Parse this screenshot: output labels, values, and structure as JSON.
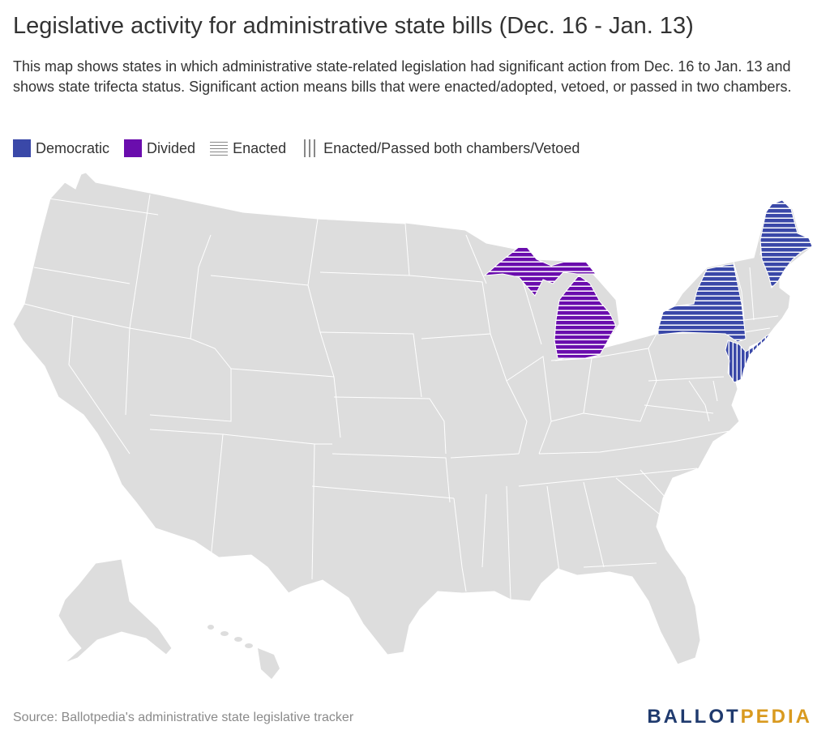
{
  "header": {
    "title": "Legislative activity for administrative state bills (Dec. 16 - Jan. 13)",
    "subtitle": "This map shows states in which administrative state-related legislation had significant action from Dec. 16 to Jan. 13 and shows state trifecta status. Significant action means bills that were enacted/adopted, vetoed, or passed in two chambers."
  },
  "legend": {
    "items": [
      {
        "label": "Democratic",
        "kind": "fill",
        "color": "#3a48a8"
      },
      {
        "label": "Divided",
        "kind": "fill",
        "color": "#6a0dad"
      },
      {
        "label": "Enacted",
        "kind": "pattern",
        "pattern": "horizontal-stripes"
      },
      {
        "label": "Enacted/Passed both chambers/Vetoed",
        "kind": "pattern",
        "pattern": "vertical-stripes"
      }
    ]
  },
  "map": {
    "base_color": "#dddddd",
    "border_color": "#ffffff",
    "highlighted_states": [
      {
        "state": "Maine",
        "status": "Democratic",
        "color": "#3a48a8",
        "pattern": "horizontal-stripes"
      },
      {
        "state": "New York",
        "status": "Democratic",
        "color": "#3a48a8",
        "pattern": "horizontal-stripes"
      },
      {
        "state": "New Jersey",
        "status": "Democratic",
        "color": "#3a48a8",
        "pattern": "vertical-stripes"
      },
      {
        "state": "Michigan",
        "status": "Divided",
        "color": "#6a0dad",
        "pattern": "horizontal-stripes"
      }
    ]
  },
  "footer": {
    "source": "Source: Ballotpedia's administrative state legislative tracker",
    "logo_part1": "BALLOT",
    "logo_part2": "PEDIA"
  }
}
